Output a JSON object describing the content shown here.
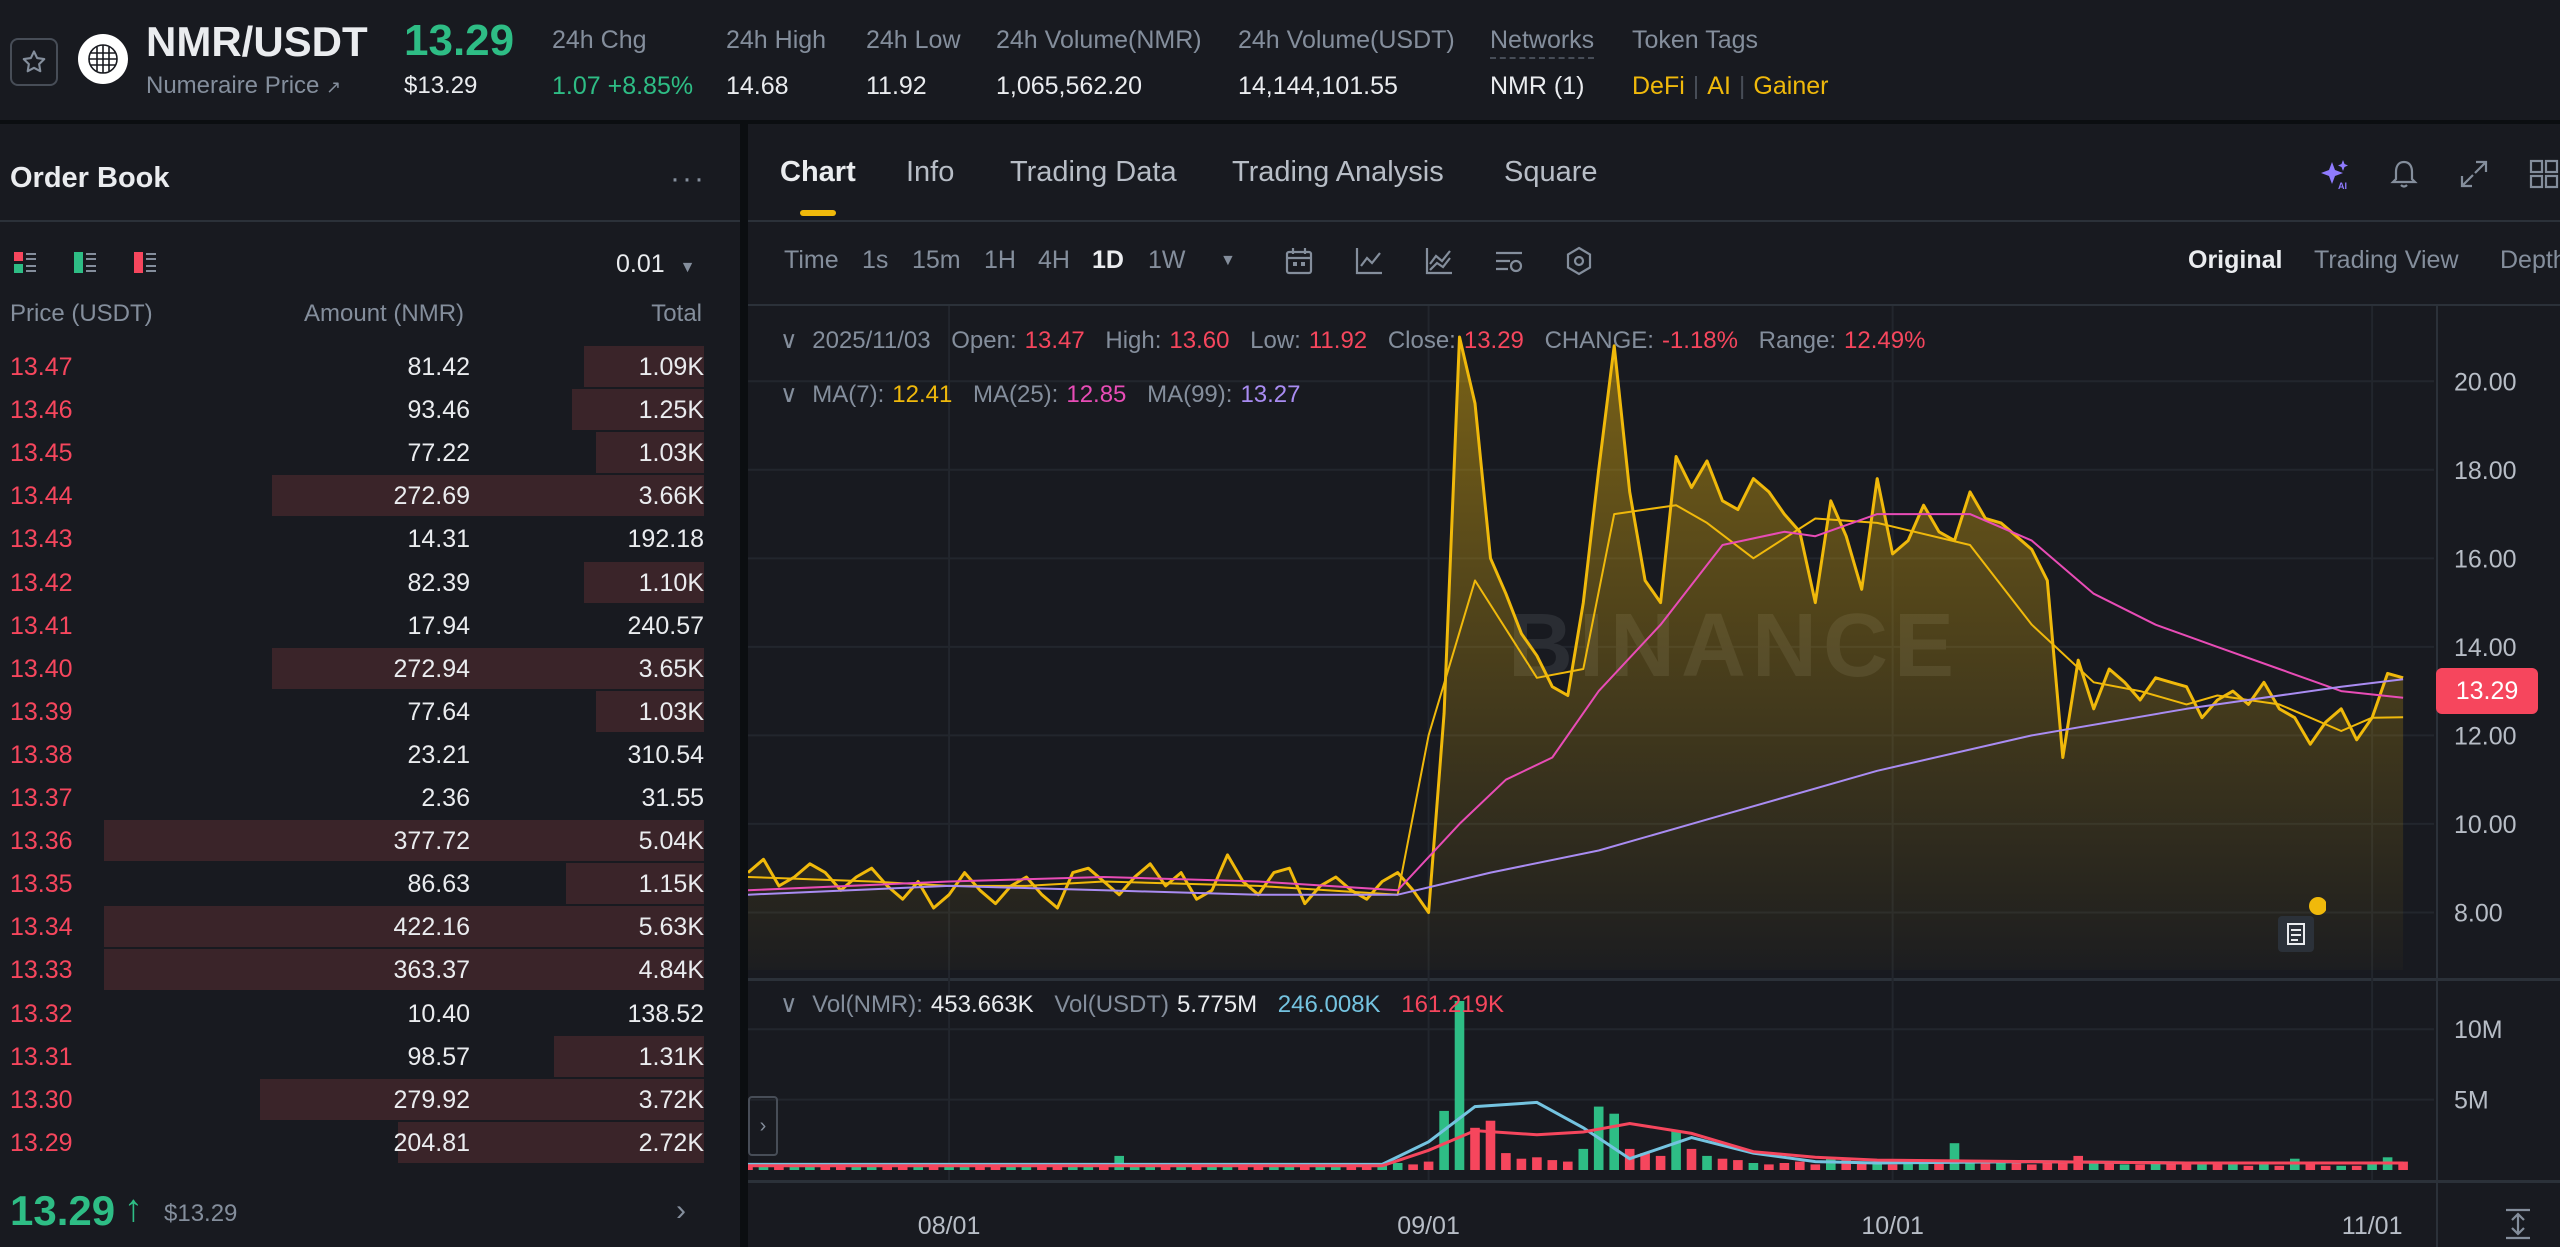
{
  "header": {
    "pair": "NMR/USDT",
    "subtitle": "Numeraire Price",
    "last_price": "13.29",
    "last_price_usd": "$13.29",
    "stats": [
      {
        "label": "24h Chg",
        "value": "1.07 +8.85%",
        "value_color": "#2ebd85"
      },
      {
        "label": "24h High",
        "value": "14.68"
      },
      {
        "label": "24h Low",
        "value": "11.92"
      },
      {
        "label": "24h Volume(NMR)",
        "value": "1,065,562.20"
      },
      {
        "label": "24h Volume(USDT)",
        "value": "14,144,101.55"
      },
      {
        "label": "Networks",
        "value": "NMR (1)"
      },
      {
        "label": "Token Tags",
        "tags": [
          "DeFi",
          "AI",
          "Gainer"
        ]
      }
    ]
  },
  "orderbook": {
    "title": "Order Book",
    "more": "···",
    "tick_size": "0.01",
    "columns": [
      "Price (USDT)",
      "Amount (NMR)",
      "Total"
    ],
    "asks": [
      {
        "price": "13.47",
        "amount": "81.42",
        "total": "1.09K",
        "depth": 0.2
      },
      {
        "price": "13.46",
        "amount": "93.46",
        "total": "1.25K",
        "depth": 0.22
      },
      {
        "price": "13.45",
        "amount": "77.22",
        "total": "1.03K",
        "depth": 0.18
      },
      {
        "price": "13.44",
        "amount": "272.69",
        "total": "3.66K",
        "depth": 0.72
      },
      {
        "price": "13.43",
        "amount": "14.31",
        "total": "192.18",
        "depth": 0.0
      },
      {
        "price": "13.42",
        "amount": "82.39",
        "total": "1.10K",
        "depth": 0.2
      },
      {
        "price": "13.41",
        "amount": "17.94",
        "total": "240.57",
        "depth": 0.0
      },
      {
        "price": "13.40",
        "amount": "272.94",
        "total": "3.65K",
        "depth": 0.72
      },
      {
        "price": "13.39",
        "amount": "77.64",
        "total": "1.03K",
        "depth": 0.18
      },
      {
        "price": "13.38",
        "amount": "23.21",
        "total": "310.54",
        "depth": 0.0
      },
      {
        "price": "13.37",
        "amount": "2.36",
        "total": "31.55",
        "depth": 0.0
      },
      {
        "price": "13.36",
        "amount": "377.72",
        "total": "5.04K",
        "depth": 1.0
      },
      {
        "price": "13.35",
        "amount": "86.63",
        "total": "1.15K",
        "depth": 0.23
      },
      {
        "price": "13.34",
        "amount": "422.16",
        "total": "5.63K",
        "depth": 1.0
      },
      {
        "price": "13.33",
        "amount": "363.37",
        "total": "4.84K",
        "depth": 1.0
      },
      {
        "price": "13.32",
        "amount": "10.40",
        "total": "138.52",
        "depth": 0.0
      },
      {
        "price": "13.31",
        "amount": "98.57",
        "total": "1.31K",
        "depth": 0.25
      },
      {
        "price": "13.30",
        "amount": "279.92",
        "total": "3.72K",
        "depth": 0.74
      },
      {
        "price": "13.29",
        "amount": "204.81",
        "total": "2.72K",
        "depth": 0.51
      }
    ],
    "last_price": "13.29",
    "last_arrow": "↑",
    "last_price_usd": "$13.29",
    "chevron": "›"
  },
  "chart_panel": {
    "tabs": [
      "Chart",
      "Info",
      "Trading Data",
      "Trading Analysis",
      "Square"
    ],
    "active_tab": "Chart",
    "intervals": [
      "Time",
      "1s",
      "15m",
      "1H",
      "4H",
      "1D",
      "1W"
    ],
    "active_interval": "1D",
    "views": [
      "Original",
      "Trading View",
      "Depth"
    ],
    "active_view": "Original",
    "header_icons": [
      "ai-sparkle-icon",
      "bell-icon",
      "expand-icon",
      "layout-grid-icon"
    ],
    "tool_icons": [
      "calendar-icon",
      "line-chart-icon",
      "indicator-icon",
      "settings-list-icon",
      "hexagon-icon"
    ]
  },
  "ohlc_legend": {
    "date": "2025/11/03",
    "open_label": "Open:",
    "open": "13.47",
    "high_label": "High:",
    "high": "13.60",
    "low_label": "Low:",
    "low": "11.92",
    "close_label": "Close:",
    "close": "13.29",
    "change_label": "CHANGE:",
    "change": "-1.18%",
    "range_label": "Range:",
    "range": "12.49%"
  },
  "ma_legend": {
    "ma7_label": "MA(7):",
    "ma7": "12.41",
    "ma25_label": "MA(25):",
    "ma25": "12.85",
    "ma99_label": "MA(99):",
    "ma99": "13.27"
  },
  "vol_legend": {
    "label": "Vol(NMR):",
    "nmr": "453.663K",
    "usdt_label": "Vol(USDT)",
    "usdt": "5.775M",
    "ma1": "246.008K",
    "ma2": "161.219K"
  },
  "current_price_tag": "13.29",
  "colors": {
    "up": "#2ebd85",
    "down": "#f6465d",
    "accent": "#f0b90b",
    "ma25": "#e84cb6",
    "ma99": "#a98cf2",
    "vol_ma": "#74c3e0"
  },
  "chart_data": [
    {
      "type": "area",
      "title": "",
      "x_ticks": [
        "08/01",
        "09/01",
        "10/01",
        "11/01"
      ],
      "y_ticks": [
        "20.00",
        "18.00",
        "16.00",
        "14.00",
        "12.00",
        "10.00",
        "8.00"
      ],
      "ylim": [
        6.7,
        21.7
      ],
      "x_range_days": [
        -13,
        96
      ],
      "series": [
        {
          "name": "Price",
          "x": [
            -13,
            -12,
            -11,
            -10,
            -9,
            -8,
            -7,
            -6,
            -5,
            -4,
            -3,
            -2,
            -1,
            0,
            1,
            2,
            3,
            4,
            5,
            6,
            7,
            8,
            9,
            10,
            11,
            12,
            13,
            14,
            15,
            16,
            17,
            18,
            19,
            20,
            21,
            22,
            23,
            24,
            25,
            26,
            27,
            28,
            29,
            30,
            31,
            32,
            33,
            34,
            35,
            36,
            37,
            38,
            39,
            40,
            41,
            42,
            43,
            44,
            45,
            46,
            47,
            48,
            49,
            50,
            51,
            52,
            53,
            54,
            55,
            56,
            57,
            58,
            59,
            60,
            61,
            62,
            63,
            64,
            65,
            66,
            67,
            68,
            69,
            70,
            71,
            72,
            73,
            74,
            75,
            76,
            77,
            78,
            79,
            80,
            81,
            82,
            83,
            84,
            85,
            86,
            87,
            88,
            89,
            90,
            91,
            92,
            93,
            94
          ],
          "values": [
            8.9,
            9.2,
            8.6,
            8.8,
            9.1,
            8.9,
            8.5,
            8.8,
            9.0,
            8.6,
            8.3,
            8.7,
            8.1,
            8.4,
            8.9,
            8.5,
            8.2,
            8.6,
            8.8,
            8.4,
            8.1,
            8.9,
            9.0,
            8.7,
            8.4,
            8.8,
            9.1,
            8.6,
            8.9,
            8.3,
            8.5,
            9.3,
            8.7,
            8.4,
            8.9,
            9.0,
            8.2,
            8.6,
            8.8,
            8.5,
            8.3,
            8.7,
            8.9,
            8.5,
            8.0,
            12.5,
            21.0,
            19.5,
            16.0,
            15.2,
            14.3,
            13.8,
            13.1,
            12.9,
            15.0,
            18.0,
            20.8,
            17.5,
            15.5,
            15.0,
            18.3,
            17.6,
            18.2,
            17.3,
            17.1,
            17.8,
            17.5,
            17.0,
            16.6,
            15.0,
            17.3,
            16.5,
            15.3,
            17.8,
            16.1,
            16.4,
            17.2,
            16.6,
            16.4,
            17.5,
            16.9,
            16.8,
            16.5,
            16.2,
            15.5,
            11.5,
            13.7,
            12.6,
            13.5,
            13.2,
            12.8,
            13.3,
            13.2,
            13.1,
            12.4,
            12.8,
            13.0,
            12.7,
            13.2,
            12.6,
            12.4,
            11.8,
            12.3,
            12.6,
            11.9,
            12.4,
            13.4,
            13.3
          ]
        },
        {
          "name": "MA(7)",
          "x": [
            -13,
            -5,
            0,
            5,
            10,
            20,
            29,
            31,
            34,
            38,
            41,
            43,
            47,
            49,
            52,
            56,
            60,
            66,
            70,
            74,
            77,
            80,
            82,
            84,
            86,
            88,
            90,
            92,
            94
          ],
          "values": [
            8.8,
            8.7,
            8.6,
            8.6,
            8.7,
            8.6,
            8.4,
            12.0,
            15.5,
            13.3,
            13.5,
            17.0,
            17.2,
            16.8,
            16.0,
            16.9,
            16.8,
            16.3,
            14.5,
            13.2,
            13.0,
            12.7,
            12.9,
            12.8,
            12.7,
            12.4,
            12.1,
            12.4,
            12.41
          ]
        },
        {
          "name": "MA(25)",
          "x": [
            -13,
            0,
            10,
            20,
            29,
            33,
            36,
            39,
            42,
            46,
            50,
            54,
            56,
            60,
            66,
            70,
            74,
            78,
            82,
            86,
            90,
            94
          ],
          "values": [
            8.5,
            8.7,
            8.8,
            8.7,
            8.5,
            10.0,
            11.0,
            11.5,
            13.0,
            14.5,
            16.3,
            16.6,
            16.5,
            17.0,
            17.0,
            16.4,
            15.2,
            14.5,
            14.0,
            13.5,
            13.0,
            12.85
          ]
        },
        {
          "name": "MA(99)",
          "x": [
            -13,
            0,
            10,
            20,
            29,
            35,
            42,
            50,
            60,
            70,
            80,
            90,
            94
          ],
          "values": [
            8.4,
            8.6,
            8.5,
            8.4,
            8.4,
            8.9,
            9.4,
            10.2,
            11.2,
            12.0,
            12.6,
            13.1,
            13.27
          ]
        }
      ]
    },
    {
      "type": "bar",
      "title": "",
      "y_ticks": [
        "10M",
        "5M"
      ],
      "ylim": [
        0,
        12.5
      ],
      "y_unit": "M",
      "x": [
        -13,
        -12,
        -11,
        -10,
        -9,
        -8,
        -7,
        -6,
        -5,
        -4,
        -3,
        -2,
        -1,
        0,
        1,
        2,
        3,
        4,
        5,
        6,
        7,
        8,
        9,
        10,
        11,
        12,
        13,
        14,
        15,
        16,
        17,
        18,
        19,
        20,
        21,
        22,
        23,
        24,
        25,
        26,
        27,
        28,
        29,
        30,
        31,
        32,
        33,
        34,
        35,
        36,
        37,
        38,
        39,
        40,
        41,
        42,
        43,
        44,
        45,
        46,
        47,
        48,
        49,
        50,
        51,
        52,
        53,
        54,
        55,
        56,
        57,
        58,
        59,
        60,
        61,
        62,
        63,
        64,
        65,
        66,
        67,
        68,
        69,
        70,
        71,
        72,
        73,
        74,
        75,
        76,
        77,
        78,
        79,
        80,
        81,
        82,
        83,
        84,
        85,
        86,
        87,
        88,
        89,
        90,
        91,
        92,
        93,
        94
      ],
      "values": [
        0.5,
        0.4,
        0.4,
        0.3,
        0.4,
        0.3,
        0.4,
        0.3,
        0.3,
        0.4,
        0.3,
        0.3,
        0.4,
        0.3,
        0.5,
        0.3,
        0.3,
        0.4,
        0.3,
        0.3,
        0.4,
        0.5,
        0.4,
        0.3,
        1.0,
        0.4,
        0.3,
        0.5,
        0.4,
        0.3,
        0.3,
        0.4,
        0.3,
        0.3,
        0.5,
        0.4,
        0.3,
        0.4,
        0.5,
        0.4,
        0.3,
        0.4,
        0.5,
        0.4,
        0.6,
        4.2,
        12.0,
        3.0,
        3.5,
        1.2,
        0.8,
        0.9,
        0.7,
        0.6,
        1.5,
        4.5,
        4.0,
        1.5,
        1.2,
        1.0,
        2.8,
        1.5,
        1.0,
        0.8,
        0.7,
        0.5,
        0.4,
        0.5,
        0.6,
        0.4,
        0.8,
        0.7,
        0.5,
        0.6,
        0.4,
        0.6,
        0.5,
        0.6,
        1.9,
        0.5,
        0.7,
        0.6,
        0.5,
        0.4,
        0.5,
        0.6,
        1.0,
        0.5,
        0.5,
        0.4,
        0.4,
        0.6,
        0.5,
        0.4,
        0.4,
        0.5,
        0.4,
        0.3,
        0.4,
        0.3,
        0.8,
        0.4,
        0.3,
        0.3,
        0.3,
        0.4,
        0.9,
        0.6
      ],
      "directions": [
        "down",
        "up",
        "down",
        "up",
        "up",
        "down",
        "down",
        "up",
        "up",
        "down",
        "down",
        "up",
        "down",
        "up",
        "up",
        "down",
        "down",
        "up",
        "up",
        "down",
        "down",
        "up",
        "up",
        "down",
        "up",
        "up",
        "up",
        "down",
        "up",
        "down",
        "up",
        "up",
        "down",
        "down",
        "up",
        "up",
        "down",
        "up",
        "up",
        "down",
        "down",
        "up",
        "up",
        "down",
        "down",
        "up",
        "up",
        "down",
        "down",
        "down",
        "down",
        "down",
        "down",
        "down",
        "up",
        "up",
        "up",
        "down",
        "down",
        "down",
        "up",
        "down",
        "up",
        "down",
        "down",
        "up",
        "down",
        "down",
        "down",
        "down",
        "up",
        "down",
        "down",
        "up",
        "down",
        "up",
        "up",
        "down",
        "up",
        "up",
        "down",
        "up",
        "down",
        "down",
        "down",
        "down",
        "down",
        "up",
        "down",
        "up",
        "down",
        "up",
        "down",
        "down",
        "up",
        "down",
        "up",
        "down",
        "up",
        "down",
        "up",
        "down",
        "down",
        "up",
        "down",
        "up",
        "up",
        "down"
      ],
      "series_ma": [
        {
          "name": "MA1",
          "x": [
            -13,
            0,
            10,
            20,
            28,
            31,
            34,
            38,
            41,
            44,
            48,
            52,
            56,
            60,
            70,
            80,
            94
          ],
          "values": [
            0.4,
            0.4,
            0.4,
            0.4,
            0.4,
            2.0,
            4.5,
            4.8,
            3.0,
            0.8,
            2.3,
            1.2,
            0.6,
            0.5,
            0.6,
            0.5,
            0.5
          ]
        },
        {
          "name": "MA2",
          "x": [
            -13,
            0,
            10,
            20,
            28,
            31,
            34,
            38,
            41,
            44,
            48,
            52,
            56,
            60,
            70,
            80,
            94
          ],
          "values": [
            0.3,
            0.3,
            0.3,
            0.3,
            0.3,
            1.4,
            2.8,
            2.5,
            2.7,
            3.3,
            2.6,
            1.3,
            0.9,
            0.7,
            0.6,
            0.5,
            0.5
          ]
        }
      ]
    }
  ]
}
